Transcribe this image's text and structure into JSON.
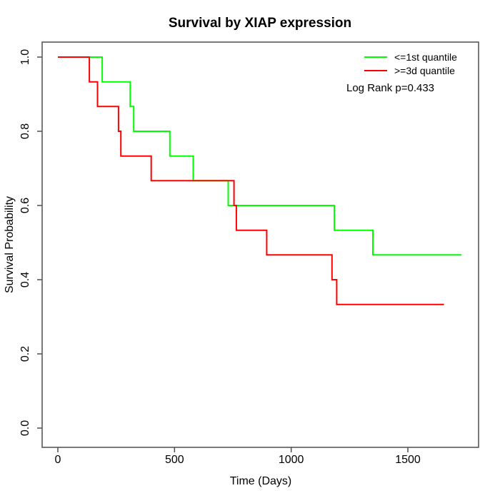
{
  "title": "Survival by XIAP expression",
  "annotation": "Log Rank p=0.433",
  "colors": {
    "group_low": "#00ff00",
    "group_high": "#ff0000",
    "axis": "#4d4d4d",
    "text": "#000000",
    "background": "#ffffff"
  },
  "chart_data": {
    "type": "line",
    "subtype": "kaplan-meier-step",
    "title": "Survival by XIAP expression",
    "xlabel": "Time (Days)",
    "ylabel": "Survival Probability",
    "xticks": [
      0,
      500,
      1000,
      1500
    ],
    "yticks": [
      0.0,
      0.2,
      0.4,
      0.6,
      0.8,
      1.0
    ],
    "xtick_labels": [
      "0",
      "500",
      "1000",
      "1500"
    ],
    "ytick_labels": [
      "0.0",
      "0.2",
      "0.4",
      "0.6",
      "0.8",
      "1.0"
    ],
    "xlim": [
      0,
      1800
    ],
    "ylim": [
      0.0,
      1.0
    ],
    "grid": false,
    "legend_position": "top-right",
    "annotation": "Log Rank p=0.433",
    "series": [
      {
        "name": "<=1st quantile",
        "color": "#00ff00",
        "points": [
          [
            0,
            1.0
          ],
          [
            190,
            1.0
          ],
          [
            190,
            0.933
          ],
          [
            310,
            0.933
          ],
          [
            310,
            0.867
          ],
          [
            325,
            0.867
          ],
          [
            325,
            0.8
          ],
          [
            480,
            0.8
          ],
          [
            480,
            0.733
          ],
          [
            580,
            0.733
          ],
          [
            580,
            0.667
          ],
          [
            730,
            0.667
          ],
          [
            730,
            0.6
          ],
          [
            1185,
            0.6
          ],
          [
            1185,
            0.533
          ],
          [
            1350,
            0.533
          ],
          [
            1350,
            0.467
          ],
          [
            1730,
            0.467
          ]
        ]
      },
      {
        "name": ">=3d quantile",
        "color": "#ff0000",
        "points": [
          [
            0,
            1.0
          ],
          [
            135,
            1.0
          ],
          [
            135,
            0.933
          ],
          [
            170,
            0.933
          ],
          [
            170,
            0.867
          ],
          [
            260,
            0.867
          ],
          [
            260,
            0.8
          ],
          [
            270,
            0.8
          ],
          [
            270,
            0.733
          ],
          [
            400,
            0.733
          ],
          [
            400,
            0.667
          ],
          [
            755,
            0.667
          ],
          [
            755,
            0.6
          ],
          [
            765,
            0.6
          ],
          [
            765,
            0.533
          ],
          [
            895,
            0.533
          ],
          [
            895,
            0.467
          ],
          [
            1175,
            0.467
          ],
          [
            1175,
            0.4
          ],
          [
            1195,
            0.4
          ],
          [
            1195,
            0.333
          ],
          [
            1655,
            0.333
          ]
        ]
      }
    ]
  }
}
